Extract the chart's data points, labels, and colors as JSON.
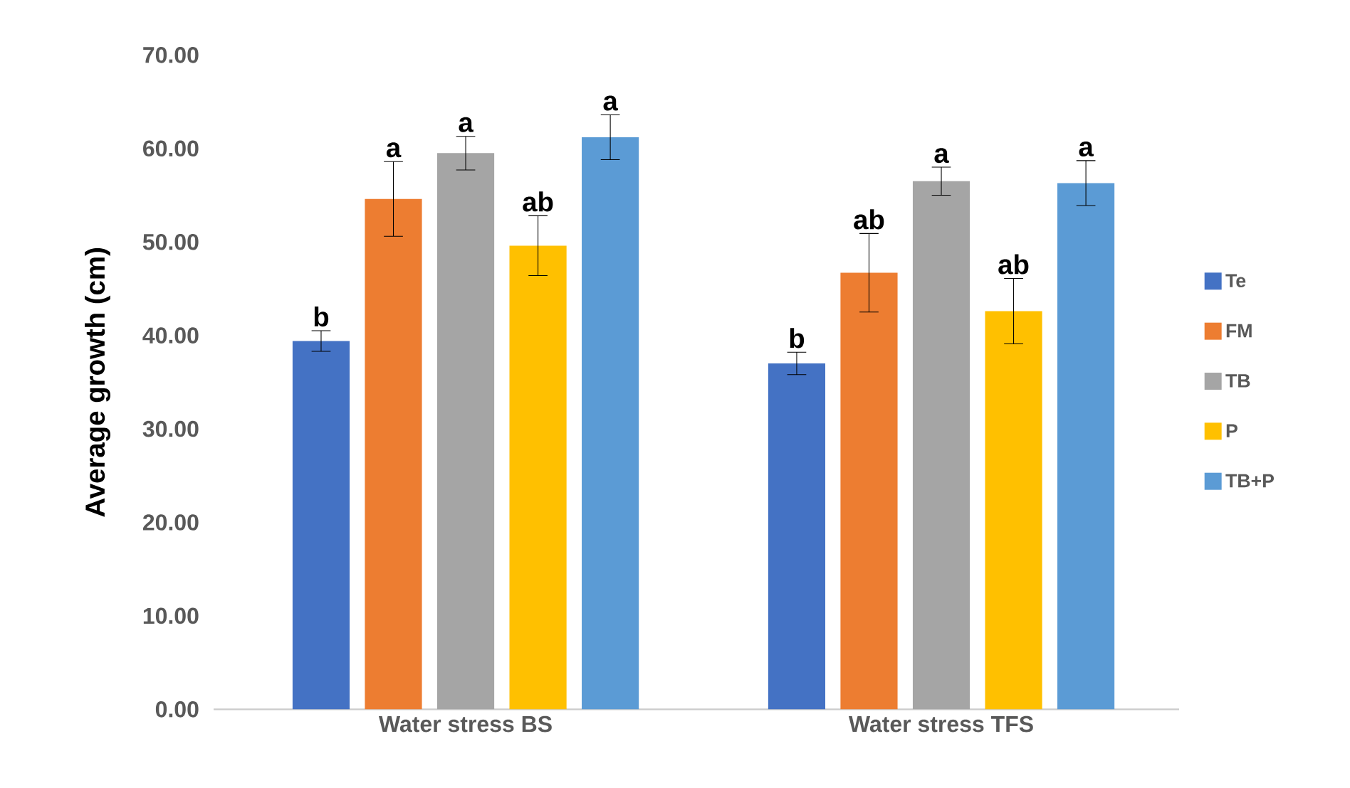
{
  "chart_data": {
    "type": "bar",
    "ylabel": "Average growth (cm)",
    "categories": [
      "Water stress BS",
      "Water stress TFS"
    ],
    "ylim": [
      0,
      70
    ],
    "yticks": [
      {
        "value": 0,
        "label": "0.00"
      },
      {
        "value": 10,
        "label": "10.00"
      },
      {
        "value": 20,
        "label": "20.00"
      },
      {
        "value": 30,
        "label": "30.00"
      },
      {
        "value": 40,
        "label": "40.00"
      },
      {
        "value": 50,
        "label": "50.00"
      },
      {
        "value": 60,
        "label": "60.00"
      },
      {
        "value": 70,
        "label": "70.00"
      }
    ],
    "legend": "right",
    "series": [
      {
        "name": "Te",
        "color": "#4472c4",
        "values": [
          39.4,
          37.0
        ],
        "errors": [
          1.1,
          1.2
        ],
        "value_labels": [
          "b",
          "b"
        ]
      },
      {
        "name": "FM",
        "color": "#ed7d31",
        "values": [
          54.6,
          46.7
        ],
        "errors": [
          4.0,
          4.2
        ],
        "value_labels": [
          "a",
          "ab"
        ]
      },
      {
        "name": "TB",
        "color": "#a5a5a5",
        "values": [
          59.5,
          56.5
        ],
        "errors": [
          1.8,
          1.5
        ],
        "value_labels": [
          "a",
          "a"
        ]
      },
      {
        "name": "P",
        "color": "#ffc000",
        "values": [
          49.6,
          42.6
        ],
        "errors": [
          3.2,
          3.5
        ],
        "value_labels": [
          "ab",
          "ab"
        ]
      },
      {
        "name": "TB+P",
        "color": "#5b9bd5",
        "values": [
          61.2,
          56.3
        ],
        "errors": [
          2.4,
          2.4
        ],
        "value_labels": [
          "a",
          "a"
        ]
      }
    ]
  }
}
